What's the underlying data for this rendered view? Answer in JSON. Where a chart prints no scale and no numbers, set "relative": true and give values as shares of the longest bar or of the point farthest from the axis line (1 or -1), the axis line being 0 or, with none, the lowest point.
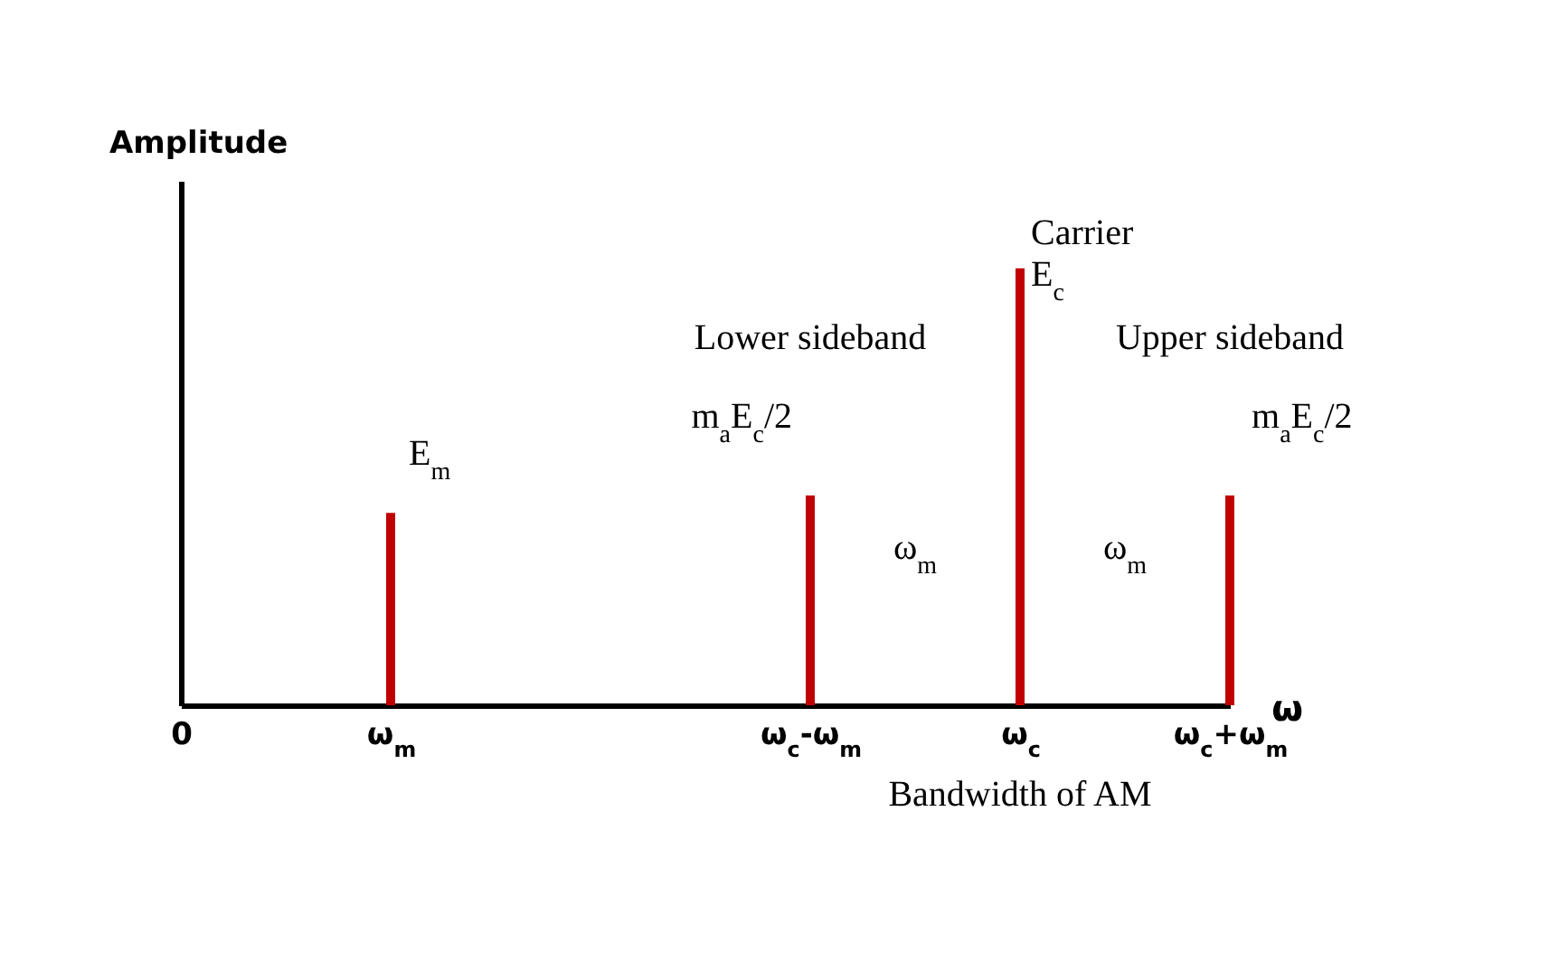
{
  "chart_data": {
    "type": "bar",
    "relative": true,
    "ylabel": "Amplitude",
    "xlabel": "ω",
    "categories": [
      "0",
      "ω$_{m}$",
      null,
      "ω$_{c}$-ω$_{m}$",
      "ω$_{c}$",
      "ω$_{c}$+ω$_{m}$"
    ],
    "values": [
      null,
      0.44,
      null,
      0.48,
      1,
      0.48
    ],
    "color": "#c00000",
    "annotations": [
      "Carrier",
      "E$_{c}$",
      "E$_{m}$",
      "Lower sideband",
      "m$_{a}$E$_{c}$/2",
      "ω$_{m}$",
      "ω$_{m}$",
      "Upper sideband",
      "m$_{a}$E$_{c}$/2",
      "Bandwidth of AM"
    ]
  }
}
